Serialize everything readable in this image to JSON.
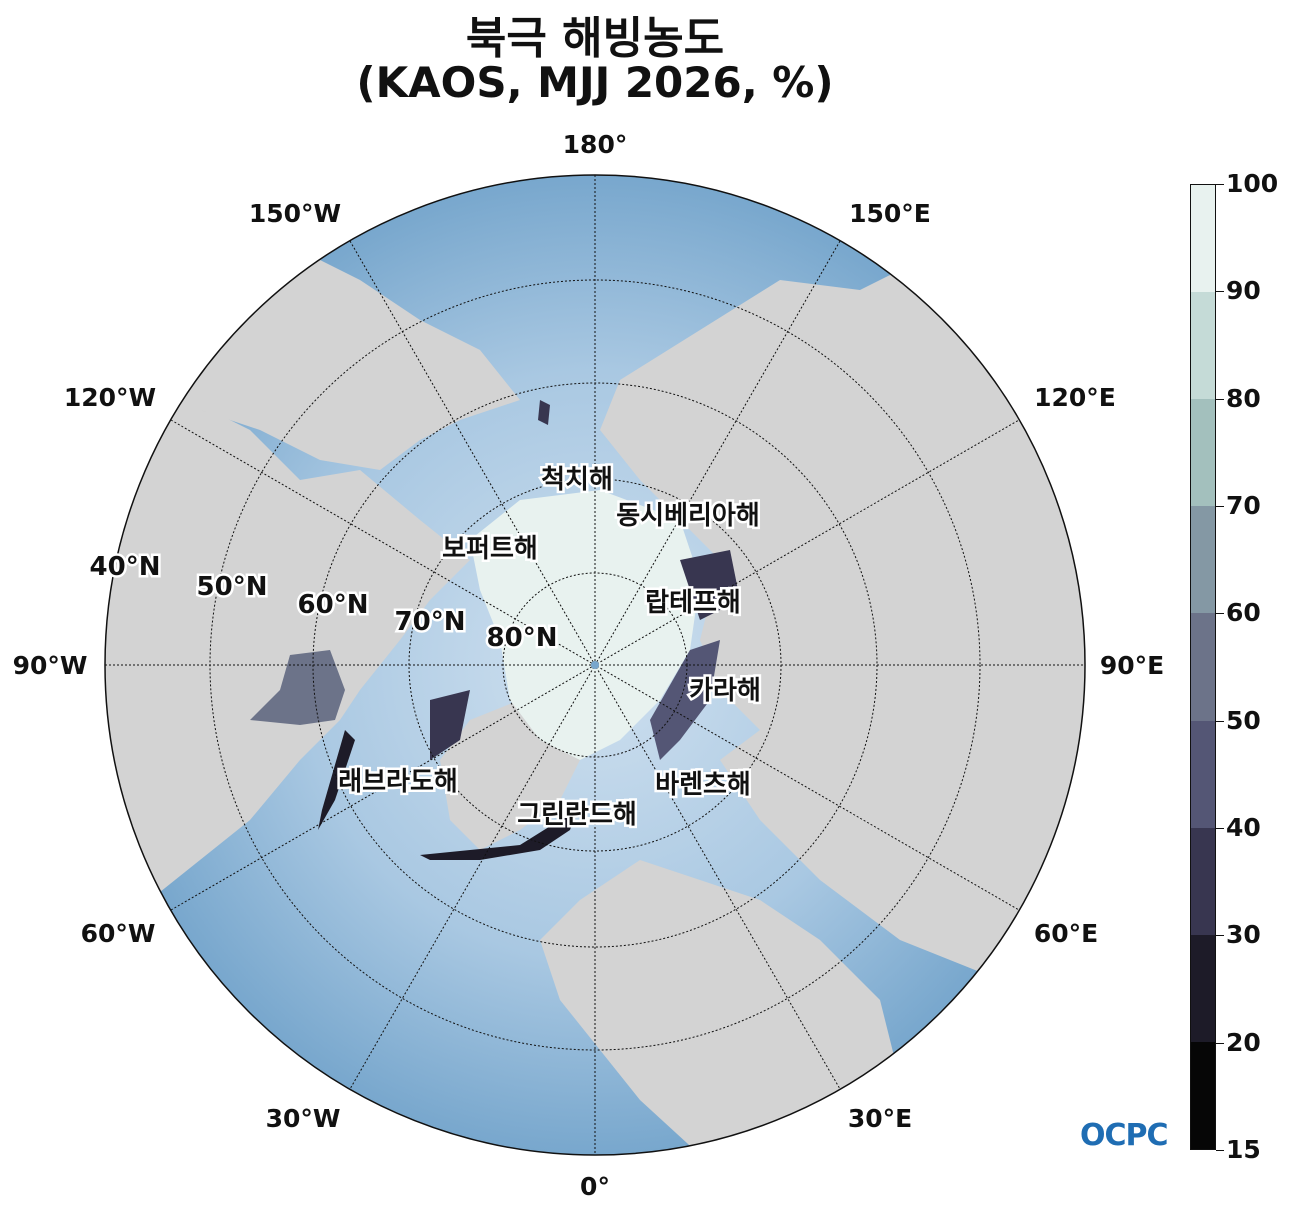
{
  "title_line1": "북극 해빙농도",
  "title_line2": "(KAOS, MJJ 2026, %)",
  "longitude_labels": [
    "180°",
    "150°E",
    "120°E",
    "90°E",
    "60°E",
    "30°E",
    "0°",
    "30°W",
    "60°W",
    "90°W",
    "120°W",
    "150°W"
  ],
  "latitude_labels": [
    "40°N",
    "50°N",
    "60°N",
    "70°N",
    "80°N"
  ],
  "sea_labels": [
    "척치해",
    "동시베리아해",
    "보퍼트해",
    "랍테프해",
    "카라해",
    "바렌츠해",
    "그린란드해",
    "래브라도해"
  ],
  "colorbar": {
    "ticks": [
      "100",
      "90",
      "80",
      "70",
      "60",
      "50",
      "40",
      "30",
      "20",
      "15"
    ],
    "colors": [
      "#e8f2ef",
      "#c5dbd7",
      "#a3c0bd",
      "#8498a4",
      "#6c7389",
      "#545675",
      "#383650",
      "#1d1b28",
      "#060606"
    ]
  },
  "logo_text": "OCPC",
  "colors": {
    "ocean": "#78a7cd",
    "land": "#d3d3d3",
    "ice": "#e8f2ef"
  }
}
